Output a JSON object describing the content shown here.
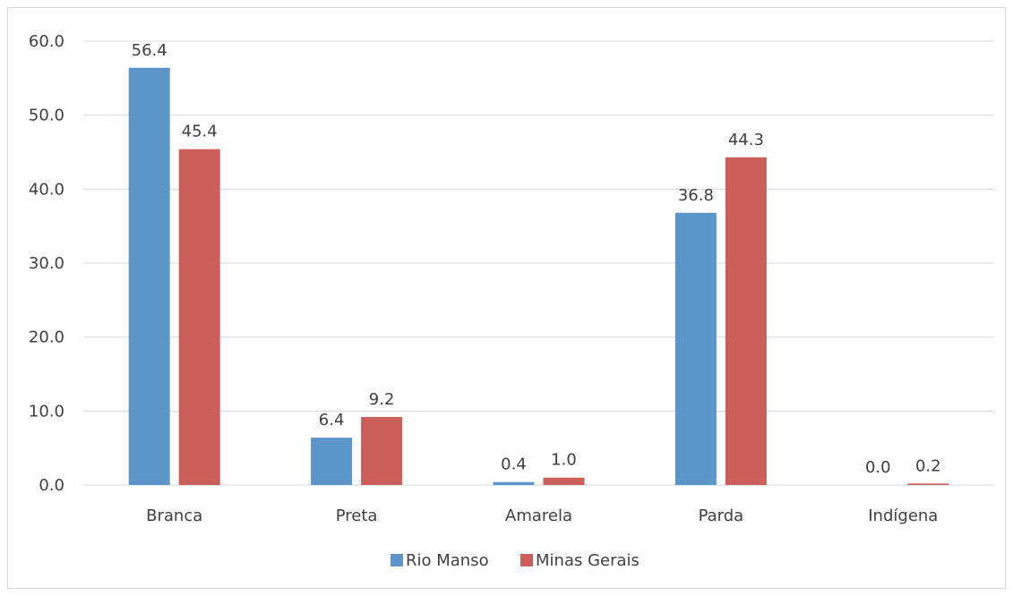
{
  "chart_data": {
    "type": "bar",
    "categories": [
      "Branca",
      "Preta",
      "Amarela",
      "Parda",
      "Indígena"
    ],
    "series": [
      {
        "name": "Rio Manso",
        "values": [
          56.4,
          6.4,
          0.4,
          36.8,
          0.0
        ],
        "labels": [
          "56.4",
          "6.4",
          "0.4",
          "36.8",
          "0.0"
        ],
        "color": "#5b95c9"
      },
      {
        "name": "Minas Gerais",
        "values": [
          45.4,
          9.2,
          1.0,
          44.3,
          0.2
        ],
        "labels": [
          "45.4",
          "9.2",
          "1.0",
          "44.3",
          "0.2"
        ],
        "color": "#cd5f5a"
      }
    ],
    "ylim": [
      0,
      60
    ],
    "yticks": [
      "0.0",
      "10.0",
      "20.0",
      "30.0",
      "40.0",
      "50.0",
      "60.0"
    ],
    "grid": true,
    "legend_position": "bottom",
    "title": "",
    "xlabel": "",
    "ylabel": ""
  }
}
